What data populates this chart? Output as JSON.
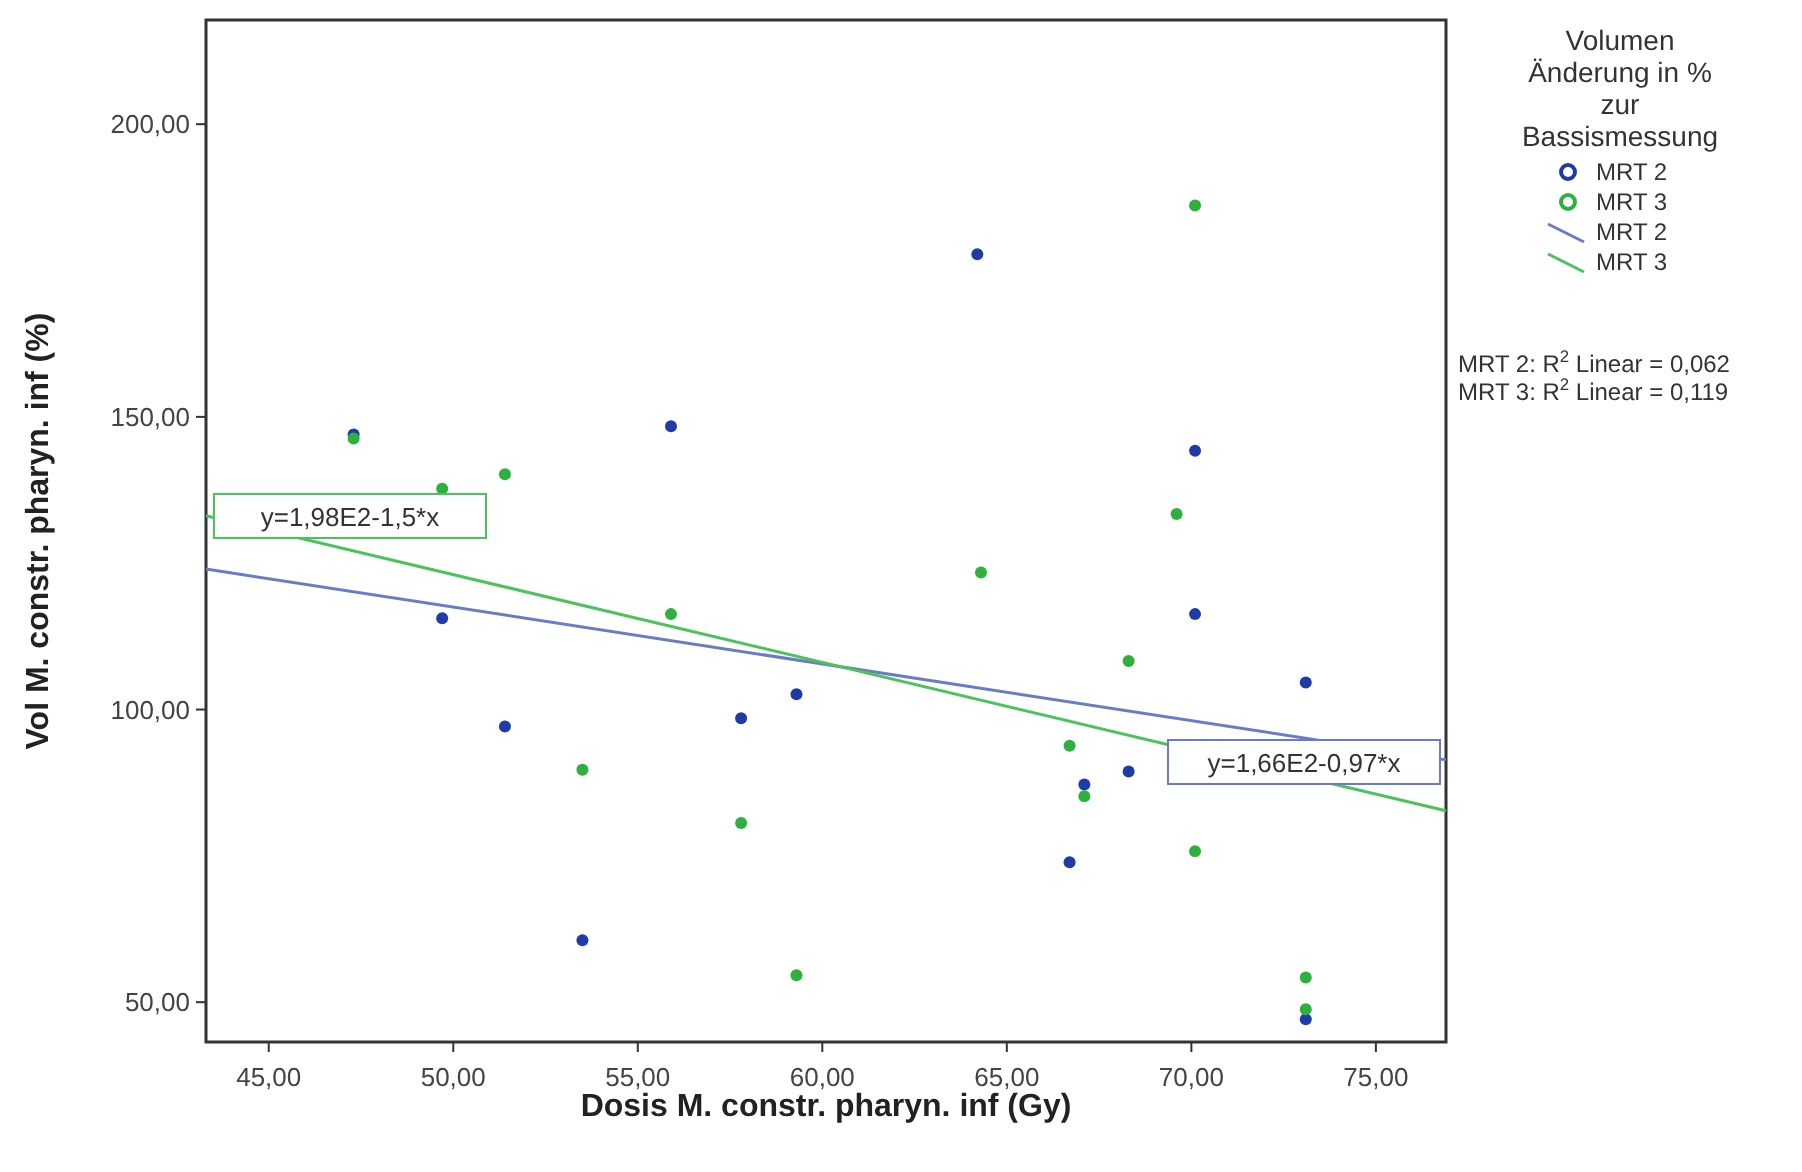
{
  "chart_data": {
    "type": "scatter",
    "xlabel": "Dosis M. constr. pharyn. inf (Gy)",
    "ylabel": "Vol M. constr. pharyn. inf (%)",
    "legend_title": "Volumen Änderung in % zur Bassismessung",
    "legend": "right",
    "grid": false,
    "xlim": [
      43.3,
      76.9
    ],
    "ylim": [
      43.2,
      217.8
    ],
    "xticks": [
      {
        "value": 45,
        "label": "45,00"
      },
      {
        "value": 50,
        "label": "50,00"
      },
      {
        "value": 55,
        "label": "55,00"
      },
      {
        "value": 60,
        "label": "60,00"
      },
      {
        "value": 65,
        "label": "65,00"
      },
      {
        "value": 70,
        "label": "70,00"
      },
      {
        "value": 75,
        "label": "75,00"
      }
    ],
    "yticks": [
      {
        "value": 50,
        "label": "50,00"
      },
      {
        "value": 100,
        "label": "100,00"
      },
      {
        "value": 150,
        "label": "150,00"
      },
      {
        "value": 200,
        "label": "200,00"
      }
    ],
    "series": [
      {
        "name": "MRT 2",
        "marker": "circle",
        "color": "#1f3ca6",
        "x": [
          47.3,
          49.7,
          51.4,
          53.5,
          55.9,
          57.8,
          59.3,
          64.2,
          66.7,
          67.1,
          68.3,
          70.1,
          70.1,
          73.1,
          73.1
        ],
        "values": [
          147.0,
          115.6,
          97.1,
          60.6,
          148.4,
          98.5,
          102.6,
          177.8,
          73.9,
          87.2,
          89.4,
          144.2,
          116.3,
          104.6,
          47.1
        ]
      },
      {
        "name": "MRT 3",
        "marker": "circle",
        "color": "#2eb03c",
        "x": [
          47.3,
          49.7,
          51.4,
          53.5,
          55.9,
          57.8,
          59.3,
          64.3,
          66.7,
          67.1,
          68.3,
          69.6,
          70.1,
          70.1,
          73.1,
          73.1
        ],
        "values": [
          146.3,
          137.7,
          140.2,
          89.7,
          116.3,
          80.6,
          54.6,
          123.4,
          93.8,
          85.2,
          108.3,
          133.4,
          186.1,
          75.8,
          54.2,
          48.8
        ]
      },
      {
        "name": "MRT 2",
        "type": "line",
        "marker": "none",
        "color": "#6a7cc6",
        "x": [
          43.3,
          76.9
        ],
        "values": [
          124.0,
          91.4
        ]
      },
      {
        "name": "MRT 3",
        "type": "line",
        "marker": "none",
        "color": "#4cc35a",
        "x": [
          43.3,
          76.9
        ],
        "values": [
          133.1,
          82.7
        ]
      }
    ],
    "annotations": [
      "y=1,66E2-0,97*x",
      "y=1,98E2-1,5*x",
      "MRT 2: R$^{2}$ Linear = 0,062",
      "MRT 3: R$^{2}$ Linear = 0,119"
    ]
  }
}
